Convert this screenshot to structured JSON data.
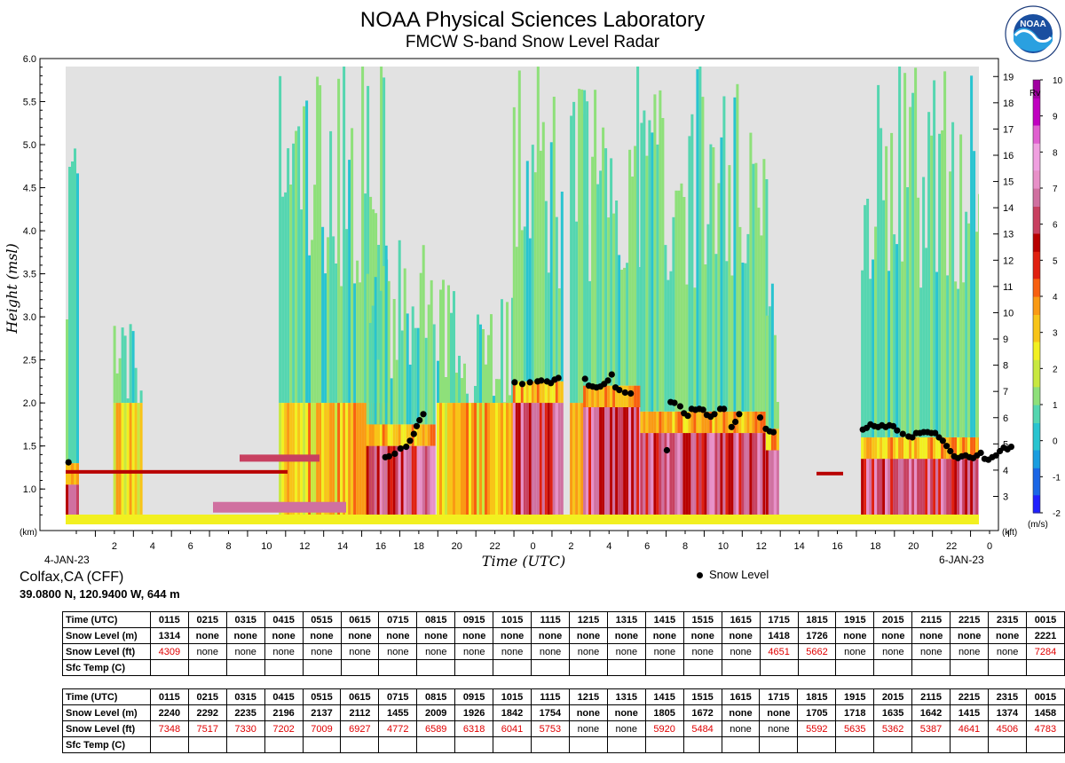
{
  "header": {
    "title": "NOAA Physical Sciences Laboratory",
    "subtitle": "FMCW S-band Snow Level Radar",
    "logo_text": "NOAA"
  },
  "site": {
    "name": "Colfax,CA (CFF)",
    "coords": "39.0800 N, 120.9400 W, 644 m"
  },
  "chart_data": {
    "type": "heatmap",
    "xlabel": "Time (UTC)",
    "ylabel": "Height (msl)",
    "ylabel_units": "(km)",
    "y2_units": "(kft)",
    "colorbar_title": "Rv",
    "colorbar_units": "(m/s)",
    "start_date_label": "4-JAN-23",
    "end_date_label": "6-JAN-23",
    "x_tick_labels": [
      "2",
      "4",
      "6",
      "8",
      "10",
      "12",
      "14",
      "16",
      "18",
      "20",
      "22",
      "0",
      "2",
      "4",
      "6",
      "8",
      "10",
      "12",
      "14",
      "16",
      "18",
      "20",
      "22",
      "0"
    ],
    "y_ticks_km": [
      "1.0",
      "1.5",
      "2.0",
      "2.5",
      "3.0",
      "3.5",
      "4.0",
      "4.5",
      "5.0",
      "5.5",
      "6.0"
    ],
    "y_ticks_kft": [
      "3",
      "4",
      "5",
      "6",
      "7",
      "8",
      "9",
      "10",
      "11",
      "12",
      "13",
      "14",
      "15",
      "16",
      "17",
      "18",
      "19"
    ],
    "colorbar_ticks": [
      "-2",
      "-1",
      "0",
      "1",
      "2",
      "3",
      "4",
      "5",
      "6",
      "7",
      "8",
      "9",
      "10"
    ],
    "xlim_hours": [
      0,
      48
    ],
    "ylim_km": [
      0.6,
      6.0
    ],
    "legend": {
      "label": "Snow Level",
      "placement": "bottom-right"
    },
    "colors": {
      "background": "#e2e2e2",
      "colormap": [
        "#2020ff",
        "#1a66e6",
        "#1a9de0",
        "#29c4d0",
        "#55d6b0",
        "#8ee07a",
        "#c8e840",
        "#f2f020",
        "#f8c418",
        "#fa9a14",
        "#f86010",
        "#e02010",
        "#b80000",
        "#c84060",
        "#d070a0",
        "#e890c8",
        "#f0a0e0",
        "#e060d0",
        "#c000c0",
        "#a000a0"
      ]
    },
    "snow_level_km": [
      [
        0.15,
        1.31
      ],
      [
        16.8,
        1.37
      ],
      [
        17.0,
        1.38
      ],
      [
        17.3,
        1.41
      ],
      [
        17.6,
        1.47
      ],
      [
        17.9,
        1.49
      ],
      [
        18.1,
        1.56
      ],
      [
        18.3,
        1.64
      ],
      [
        18.45,
        1.73
      ],
      [
        18.6,
        1.8
      ],
      [
        18.8,
        1.87
      ],
      [
        23.6,
        2.24
      ],
      [
        24.0,
        2.22
      ],
      [
        24.4,
        2.24
      ],
      [
        24.8,
        2.25
      ],
      [
        25.0,
        2.26
      ],
      [
        25.3,
        2.25
      ],
      [
        25.5,
        2.23
      ],
      [
        25.7,
        2.27
      ],
      [
        25.9,
        2.29
      ],
      [
        27.3,
        2.28
      ],
      [
        27.5,
        2.2
      ],
      [
        27.7,
        2.19
      ],
      [
        27.9,
        2.18
      ],
      [
        28.1,
        2.19
      ],
      [
        28.3,
        2.22
      ],
      [
        28.5,
        2.26
      ],
      [
        28.7,
        2.33
      ],
      [
        28.9,
        2.18
      ],
      [
        29.1,
        2.15
      ],
      [
        29.4,
        2.12
      ],
      [
        29.7,
        2.11
      ],
      [
        31.6,
        1.45
      ],
      [
        31.8,
        2.01
      ],
      [
        32.0,
        2.0
      ],
      [
        32.3,
        1.96
      ],
      [
        32.5,
        1.88
      ],
      [
        32.7,
        1.85
      ],
      [
        32.9,
        1.93
      ],
      [
        33.1,
        1.92
      ],
      [
        33.3,
        1.93
      ],
      [
        33.5,
        1.92
      ],
      [
        33.7,
        1.86
      ],
      [
        33.9,
        1.84
      ],
      [
        34.1,
        1.87
      ],
      [
        34.4,
        1.93
      ],
      [
        34.6,
        1.93
      ],
      [
        35.0,
        1.72
      ],
      [
        35.2,
        1.78
      ],
      [
        35.4,
        1.87
      ],
      [
        36.5,
        1.83
      ],
      [
        36.8,
        1.7
      ],
      [
        37.0,
        1.67
      ],
      [
        37.2,
        1.66
      ],
      [
        41.9,
        1.69
      ],
      [
        42.1,
        1.71
      ],
      [
        42.3,
        1.75
      ],
      [
        42.5,
        1.73
      ],
      [
        42.7,
        1.72
      ],
      [
        42.9,
        1.74
      ],
      [
        43.1,
        1.72
      ],
      [
        43.3,
        1.74
      ],
      [
        43.5,
        1.73
      ],
      [
        43.7,
        1.68
      ],
      [
        44.0,
        1.64
      ],
      [
        44.3,
        1.61
      ],
      [
        44.5,
        1.6
      ],
      [
        44.7,
        1.65
      ],
      [
        44.9,
        1.65
      ],
      [
        45.1,
        1.66
      ],
      [
        45.3,
        1.66
      ],
      [
        45.5,
        1.65
      ],
      [
        45.7,
        1.65
      ],
      [
        45.9,
        1.6
      ],
      [
        46.1,
        1.56
      ],
      [
        46.3,
        1.5
      ],
      [
        46.5,
        1.44
      ],
      [
        46.7,
        1.38
      ],
      [
        46.9,
        1.36
      ],
      [
        47.1,
        1.38
      ],
      [
        47.3,
        1.39
      ],
      [
        47.5,
        1.37
      ],
      [
        47.7,
        1.36
      ],
      [
        47.9,
        1.39
      ],
      [
        48.1,
        1.42
      ],
      [
        48.3,
        1.35
      ],
      [
        48.5,
        1.34
      ],
      [
        48.7,
        1.37
      ],
      [
        48.9,
        1.39
      ],
      [
        49.1,
        1.44
      ],
      [
        49.3,
        1.48
      ],
      [
        49.5,
        1.46
      ],
      [
        49.7,
        1.49
      ]
    ]
  },
  "tables": [
    {
      "headers": [
        "Time (UTC)",
        "0115",
        "0215",
        "0315",
        "0415",
        "0515",
        "0615",
        "0715",
        "0815",
        "0915",
        "1015",
        "1115",
        "1215",
        "1315",
        "1415",
        "1515",
        "1615",
        "1715",
        "1815",
        "1915",
        "2015",
        "2115",
        "2215",
        "2315",
        "0015"
      ],
      "snow_m": [
        "Snow Level (m)",
        "1314",
        "none",
        "none",
        "none",
        "none",
        "none",
        "none",
        "none",
        "none",
        "none",
        "none",
        "none",
        "none",
        "none",
        "none",
        "none",
        "1418",
        "1726",
        "none",
        "none",
        "none",
        "none",
        "none",
        "2221"
      ],
      "snow_ft": [
        "Snow Level (ft)",
        "4309",
        "none",
        "none",
        "none",
        "none",
        "none",
        "none",
        "none",
        "none",
        "none",
        "none",
        "none",
        "none",
        "none",
        "none",
        "none",
        "4651",
        "5662",
        "none",
        "none",
        "none",
        "none",
        "none",
        "7284"
      ],
      "sfc_temp": [
        "Sfc Temp (C)",
        "",
        "",
        "",
        "",
        "",
        "",
        "",
        "",
        "",
        "",
        "",
        "",
        "",
        "",
        "",
        "",
        "",
        "",
        "",
        "",
        "",
        "",
        "",
        ""
      ]
    },
    {
      "headers": [
        "Time (UTC)",
        "0115",
        "0215",
        "0315",
        "0415",
        "0515",
        "0615",
        "0715",
        "0815",
        "0915",
        "1015",
        "1115",
        "1215",
        "1315",
        "1415",
        "1515",
        "1615",
        "1715",
        "1815",
        "1915",
        "2015",
        "2115",
        "2215",
        "2315",
        "0015"
      ],
      "snow_m": [
        "Snow Level (m)",
        "2240",
        "2292",
        "2235",
        "2196",
        "2137",
        "2112",
        "1455",
        "2009",
        "1926",
        "1842",
        "1754",
        "none",
        "none",
        "1805",
        "1672",
        "none",
        "none",
        "1705",
        "1718",
        "1635",
        "1642",
        "1415",
        "1374",
        "1458"
      ],
      "snow_ft": [
        "Snow Level (ft)",
        "7348",
        "7517",
        "7330",
        "7202",
        "7009",
        "6927",
        "4772",
        "6589",
        "6318",
        "6041",
        "5753",
        "none",
        "none",
        "5920",
        "5484",
        "none",
        "none",
        "5592",
        "5635",
        "5362",
        "5387",
        "4641",
        "4506",
        "4783"
      ],
      "sfc_temp": [
        "Sfc Temp (C)",
        "",
        "",
        "",
        "",
        "",
        "",
        "",
        "",
        "",
        "",
        "",
        "",
        "",
        "",
        "",
        "",
        "",
        "",
        "",
        "",
        "",
        "",
        "",
        ""
      ]
    }
  ]
}
